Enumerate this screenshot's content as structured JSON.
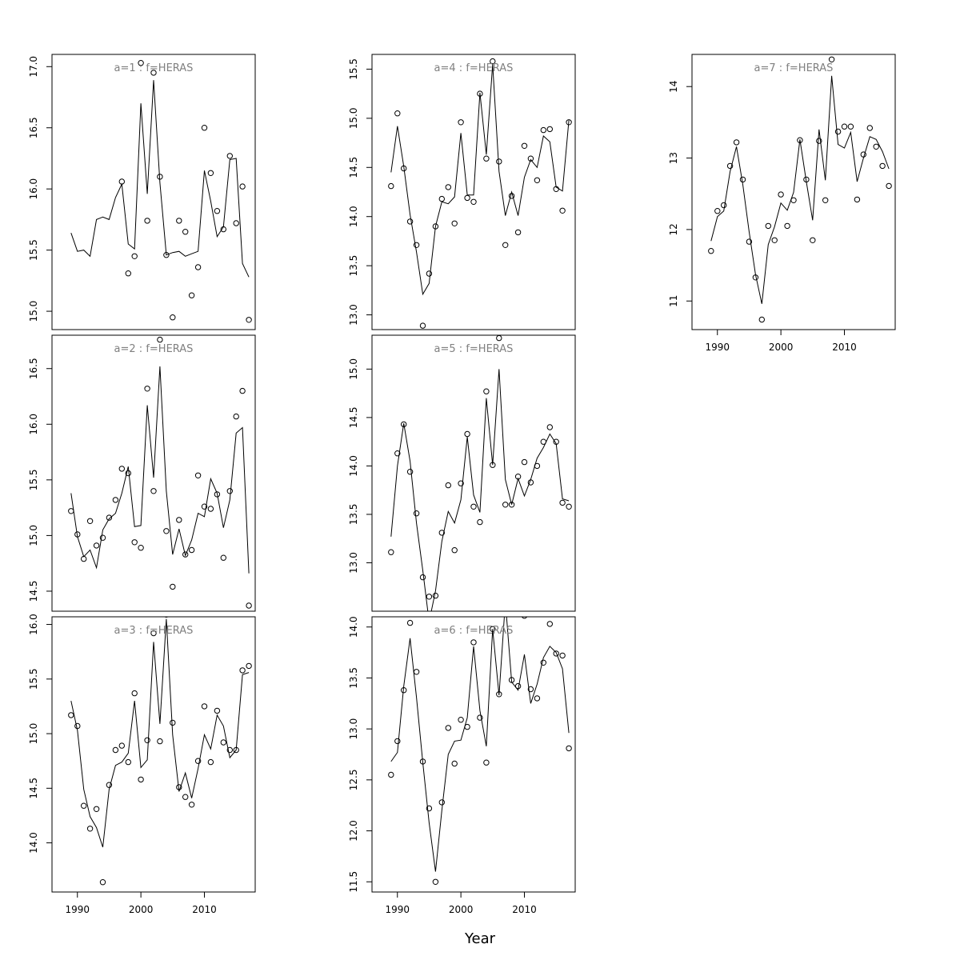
{
  "xlabel": "Year",
  "chart_data": [
    {
      "type": "line",
      "title": "a=1  :  f=HERAS",
      "xlim": [
        1986,
        2018
      ],
      "ylim": [
        14.85,
        17.1
      ],
      "yticks": [
        15.0,
        15.5,
        16.0,
        16.5,
        17.0
      ],
      "xticks": [],
      "x": [
        1989,
        1990,
        1991,
        1992,
        1993,
        1994,
        1995,
        1996,
        1997,
        1998,
        1999,
        2000,
        2001,
        2002,
        2003,
        2004,
        2005,
        2006,
        2007,
        2008,
        2009,
        2010,
        2011,
        2012,
        2013,
        2014,
        2015,
        2016,
        2017
      ],
      "series": [
        {
          "kind": "fitted",
          "values": [
            15.64,
            15.49,
            15.5,
            15.45,
            15.75,
            15.77,
            15.75,
            15.93,
            16.04,
            15.55,
            15.51,
            16.7,
            15.96,
            16.89,
            16.05,
            15.46,
            15.48,
            15.49,
            15.45,
            15.47,
            15.49,
            16.15,
            15.9,
            15.61,
            15.69,
            16.24,
            16.25,
            15.39,
            15.28
          ]
        },
        {
          "kind": "observed",
          "values": [
            null,
            null,
            null,
            null,
            null,
            null,
            null,
            null,
            16.06,
            15.31,
            15.45,
            17.03,
            15.74,
            16.95,
            16.1,
            15.46,
            14.95,
            15.74,
            15.65,
            15.13,
            15.36,
            16.5,
            16.13,
            15.82,
            15.67,
            16.27,
            15.72,
            16.02,
            14.93
          ]
        }
      ]
    },
    {
      "type": "line",
      "title": "a=2  :  f=HERAS",
      "xlim": [
        1986,
        2018
      ],
      "ylim": [
        14.32,
        16.8
      ],
      "yticks": [
        14.5,
        15.0,
        15.5,
        16.0,
        16.5
      ],
      "xticks": [],
      "x": [
        1989,
        1990,
        1991,
        1992,
        1993,
        1994,
        1995,
        1996,
        1997,
        1998,
        1999,
        2000,
        2001,
        2002,
        2003,
        2004,
        2005,
        2006,
        2007,
        2008,
        2009,
        2010,
        2011,
        2012,
        2013,
        2014,
        2015,
        2016,
        2017
      ],
      "series": [
        {
          "kind": "fitted",
          "values": [
            15.38,
            14.99,
            14.81,
            14.87,
            14.71,
            15.05,
            15.15,
            15.2,
            15.38,
            15.62,
            15.08,
            15.09,
            16.17,
            15.52,
            16.52,
            15.4,
            14.83,
            15.06,
            14.82,
            14.96,
            15.2,
            15.17,
            15.51,
            15.38,
            15.07,
            15.32,
            15.92,
            15.97,
            14.66
          ]
        },
        {
          "kind": "observed",
          "values": [
            15.22,
            15.01,
            14.79,
            15.13,
            14.91,
            14.98,
            15.16,
            15.32,
            15.6,
            15.56,
            14.94,
            14.89,
            16.32,
            15.4,
            16.76,
            15.04,
            14.54,
            15.14,
            14.83,
            14.87,
            15.54,
            15.26,
            15.24,
            15.37,
            14.8,
            15.4,
            16.07,
            16.3,
            14.37
          ]
        }
      ]
    },
    {
      "type": "line",
      "title": "a=3  :  f=HERAS",
      "xlim": [
        1986,
        2018
      ],
      "ylim": [
        13.55,
        16.07
      ],
      "yticks": [
        14.0,
        14.5,
        15.0,
        15.5,
        16.0
      ],
      "xticks": [
        1990,
        2000,
        2010
      ],
      "x": [
        1989,
        1990,
        1991,
        1992,
        1993,
        1994,
        1995,
        1996,
        1997,
        1998,
        1999,
        2000,
        2001,
        2002,
        2003,
        2004,
        2005,
        2006,
        2007,
        2008,
        2009,
        2010,
        2011,
        2012,
        2013,
        2014,
        2015,
        2016,
        2017
      ],
      "series": [
        {
          "kind": "fitted",
          "values": [
            15.3,
            15.03,
            14.49,
            14.24,
            14.14,
            13.96,
            14.49,
            14.71,
            14.74,
            14.82,
            15.3,
            14.69,
            14.76,
            15.84,
            15.09,
            16.05,
            14.99,
            14.47,
            14.64,
            14.41,
            14.68,
            14.99,
            14.86,
            15.17,
            15.07,
            14.78,
            14.85,
            15.54,
            15.56
          ]
        },
        {
          "kind": "observed",
          "values": [
            15.17,
            15.07,
            14.34,
            14.13,
            14.31,
            13.64,
            14.53,
            14.85,
            14.89,
            14.74,
            15.37,
            14.58,
            14.94,
            15.92,
            14.93,
            16.09,
            15.1,
            14.51,
            14.42,
            14.35,
            14.75,
            15.25,
            14.74,
            15.21,
            14.92,
            14.85,
            14.85,
            15.58,
            15.62
          ]
        }
      ]
    },
    {
      "type": "line",
      "title": "a=4  :  f=HERAS",
      "xlim": [
        1986,
        2018
      ],
      "ylim": [
        12.85,
        15.65
      ],
      "yticks": [
        13.0,
        13.5,
        14.0,
        14.5,
        15.0,
        15.5
      ],
      "xticks": [],
      "x": [
        1989,
        1990,
        1991,
        1992,
        1993,
        1994,
        1995,
        1996,
        1997,
        1998,
        1999,
        2000,
        2001,
        2002,
        2003,
        2004,
        2005,
        2006,
        2007,
        2008,
        2009,
        2010,
        2011,
        2012,
        2013,
        2014,
        2015,
        2016,
        2017
      ],
      "series": [
        {
          "kind": "fitted",
          "values": [
            14.45,
            14.92,
            14.51,
            14.02,
            13.64,
            13.21,
            13.32,
            13.9,
            14.15,
            14.13,
            14.2,
            14.85,
            14.22,
            14.22,
            15.26,
            14.63,
            15.55,
            14.46,
            14.01,
            14.25,
            14.01,
            14.4,
            14.58,
            14.5,
            14.82,
            14.76,
            14.3,
            14.26,
            14.98
          ]
        },
        {
          "kind": "observed",
          "values": [
            14.31,
            15.05,
            14.49,
            13.95,
            13.71,
            12.89,
            13.42,
            13.9,
            14.18,
            14.3,
            13.93,
            14.96,
            14.19,
            14.15,
            15.25,
            14.59,
            15.58,
            14.56,
            13.71,
            14.21,
            13.84,
            14.72,
            14.59,
            14.37,
            14.88,
            14.89,
            14.28,
            14.06,
            14.96
          ]
        }
      ]
    },
    {
      "type": "line",
      "title": "a=5  :  f=HERAS",
      "xlim": [
        1986,
        2018
      ],
      "ylim": [
        12.5,
        15.35
      ],
      "yticks": [
        13.0,
        13.5,
        14.0,
        14.5,
        15.0
      ],
      "xticks": [],
      "x": [
        1989,
        1990,
        1991,
        1992,
        1993,
        1994,
        1995,
        1996,
        1997,
        1998,
        1999,
        2000,
        2001,
        2002,
        2003,
        2004,
        2005,
        2006,
        2007,
        2008,
        2009,
        2010,
        2011,
        2012,
        2013,
        2014,
        2015,
        2016,
        2017
      ],
      "series": [
        {
          "kind": "fitted",
          "values": [
            13.27,
            14.0,
            14.44,
            14.05,
            13.41,
            12.92,
            12.39,
            12.71,
            13.22,
            13.53,
            13.41,
            13.65,
            14.3,
            13.7,
            13.52,
            14.7,
            14.01,
            15.0,
            13.86,
            13.6,
            13.87,
            13.69,
            13.86,
            14.08,
            14.19,
            14.33,
            14.23,
            13.66,
            13.64
          ]
        },
        {
          "kind": "observed",
          "values": [
            13.11,
            14.13,
            14.43,
            13.94,
            13.51,
            12.85,
            12.65,
            12.66,
            13.31,
            13.8,
            13.13,
            13.82,
            14.33,
            13.58,
            13.42,
            14.77,
            14.01,
            15.32,
            13.6,
            13.6,
            13.89,
            14.04,
            13.83,
            14.0,
            14.25,
            14.4,
            14.25,
            13.62,
            13.58
          ]
        }
      ]
    },
    {
      "type": "line",
      "title": "a=6  :  f=HERAS",
      "xlim": [
        1986,
        2018
      ],
      "ylim": [
        11.4,
        14.1
      ],
      "yticks": [
        11.5,
        12.0,
        12.5,
        13.0,
        13.5,
        14.0
      ],
      "xticks": [
        1990,
        2000,
        2010
      ],
      "x": [
        1989,
        1990,
        1991,
        1992,
        1993,
        1994,
        1995,
        1996,
        1997,
        1998,
        1999,
        2000,
        2001,
        2002,
        2003,
        2004,
        2005,
        2006,
        2007,
        2008,
        2009,
        2010,
        2011,
        2012,
        2013,
        2014,
        2015,
        2016,
        2017
      ],
      "series": [
        {
          "kind": "fitted",
          "values": [
            12.68,
            12.77,
            13.42,
            13.89,
            13.31,
            12.67,
            12.08,
            11.6,
            12.2,
            12.75,
            12.88,
            12.89,
            13.11,
            13.81,
            13.18,
            12.83,
            13.98,
            13.33,
            14.25,
            13.46,
            13.38,
            13.73,
            13.25,
            13.44,
            13.7,
            13.81,
            13.75,
            13.59,
            12.96
          ]
        },
        {
          "kind": "observed",
          "values": [
            12.55,
            12.88,
            13.38,
            14.04,
            13.56,
            12.68,
            12.22,
            11.5,
            12.28,
            13.01,
            12.66,
            13.09,
            13.02,
            13.85,
            13.11,
            12.67,
            13.98,
            13.34,
            14.22,
            13.48,
            13.42,
            14.11,
            13.39,
            13.3,
            13.65,
            14.03,
            13.74,
            13.72,
            12.81
          ]
        }
      ]
    },
    {
      "type": "line",
      "title": "a=7  :  f=HERAS",
      "xlim": [
        1986,
        2018
      ],
      "ylim": [
        10.6,
        14.45
      ],
      "yticks": [
        11,
        12,
        13,
        14
      ],
      "xticks": [
        1990,
        2000,
        2010
      ],
      "x": [
        1989,
        1990,
        1991,
        1992,
        1993,
        1994,
        1995,
        1996,
        1997,
        1998,
        1999,
        2000,
        2001,
        2002,
        2003,
        2004,
        2005,
        2006,
        2007,
        2008,
        2009,
        2010,
        2011,
        2012,
        2013,
        2014,
        2015,
        2016,
        2017
      ],
      "series": [
        {
          "kind": "fitted",
          "values": [
            11.84,
            12.18,
            12.26,
            12.81,
            13.16,
            12.63,
            11.97,
            11.37,
            10.96,
            11.79,
            12.04,
            12.37,
            12.27,
            12.52,
            13.26,
            12.67,
            12.13,
            13.4,
            12.69,
            14.15,
            13.19,
            13.14,
            13.36,
            12.67,
            13.0,
            13.3,
            13.26,
            13.09,
            12.85
          ]
        },
        {
          "kind": "observed",
          "values": [
            11.7,
            12.26,
            12.34,
            12.89,
            13.22,
            12.7,
            11.83,
            11.33,
            10.74,
            12.05,
            11.85,
            12.49,
            12.05,
            12.41,
            13.25,
            12.7,
            11.85,
            13.24,
            12.41,
            14.38,
            13.37,
            13.44,
            13.44,
            12.42,
            13.05,
            13.42,
            13.16,
            12.89,
            12.61
          ]
        }
      ]
    }
  ]
}
